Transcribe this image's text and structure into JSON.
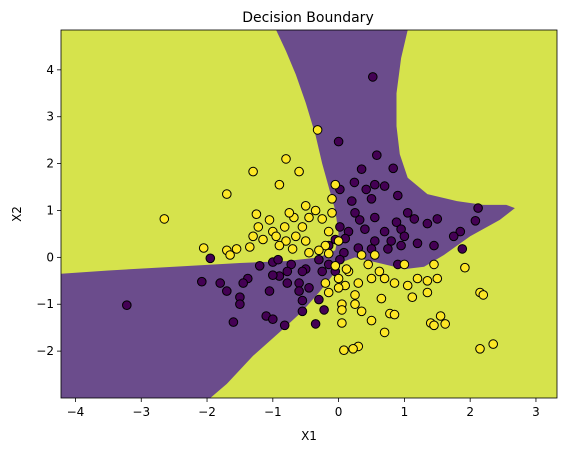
{
  "chart_data": {
    "type": "scatter",
    "title": "Decision Boundary",
    "xlabel": "X1",
    "ylabel": "X2",
    "xlim": [
      -4.22,
      3.32
    ],
    "ylim": [
      -3.0,
      4.85
    ],
    "xticks": [
      -4,
      -3,
      -2,
      -1,
      0,
      1,
      2,
      3
    ],
    "yticks": [
      -2,
      -1,
      0,
      1,
      2,
      3,
      4
    ],
    "grid": false,
    "legend": "none",
    "colors": {
      "class_0_region": "#6b4c8c",
      "class_1_region": "#d6e34c",
      "class_0_point": "#440154",
      "class_1_point": "#fde725",
      "point_edge": "#000000"
    },
    "region_class_0_polygon": [
      [
        -0.95,
        4.85
      ],
      [
        1.05,
        4.85
      ],
      [
        0.95,
        4.25
      ],
      [
        0.88,
        3.5
      ],
      [
        0.88,
        2.8
      ],
      [
        0.93,
        2.2
      ],
      [
        1.05,
        1.7
      ],
      [
        1.35,
        1.35
      ],
      [
        1.8,
        1.2
      ],
      [
        2.2,
        1.12
      ],
      [
        2.55,
        1.12
      ],
      [
        2.68,
        1.05
      ],
      [
        2.45,
        0.8
      ],
      [
        2.0,
        0.45
      ],
      [
        1.6,
        0.05
      ],
      [
        1.3,
        -0.2
      ],
      [
        1.0,
        -0.25
      ],
      [
        0.7,
        -0.15
      ],
      [
        0.4,
        -0.05
      ],
      [
        0.25,
        0.0
      ],
      [
        0.05,
        -0.1
      ],
      [
        -0.1,
        -0.4
      ],
      [
        -0.3,
        -0.75
      ],
      [
        -0.55,
        -1.15
      ],
      [
        -0.9,
        -1.6
      ],
      [
        -1.3,
        -2.1
      ],
      [
        -1.7,
        -2.7
      ],
      [
        -1.95,
        -3.0
      ],
      [
        -4.22,
        -3.0
      ],
      [
        -4.22,
        -0.35
      ],
      [
        -3.5,
        -0.28
      ],
      [
        -2.5,
        -0.2
      ],
      [
        -1.5,
        -0.12
      ],
      [
        -0.8,
        -0.08
      ],
      [
        -0.3,
        0.0
      ],
      [
        -0.05,
        0.15
      ],
      [
        0.0,
        0.5
      ],
      [
        -0.05,
        1.0
      ],
      [
        -0.15,
        1.5
      ],
      [
        -0.25,
        2.0
      ],
      [
        -0.35,
        2.6
      ],
      [
        -0.5,
        3.3
      ],
      [
        -0.65,
        3.9
      ],
      [
        -0.8,
        4.4
      ]
    ],
    "series": [
      {
        "class": 0,
        "points": [
          [
            0.52,
            3.85
          ],
          [
            0.0,
            2.47
          ],
          [
            0.58,
            2.18
          ],
          [
            0.35,
            1.88
          ],
          [
            0.83,
            1.9
          ],
          [
            0.24,
            1.6
          ],
          [
            0.55,
            1.55
          ],
          [
            0.7,
            1.52
          ],
          [
            0.42,
            1.45
          ],
          [
            0.9,
            1.32
          ],
          [
            0.02,
            1.45
          ],
          [
            0.2,
            1.2
          ],
          [
            0.5,
            1.25
          ],
          [
            1.05,
            0.95
          ],
          [
            0.32,
            0.8
          ],
          [
            0.55,
            0.85
          ],
          [
            0.88,
            0.75
          ],
          [
            1.15,
            0.82
          ],
          [
            1.5,
            0.82
          ],
          [
            0.25,
            0.95
          ],
          [
            1.35,
            0.72
          ],
          [
            1.85,
            0.55
          ],
          [
            1.75,
            0.45
          ],
          [
            2.12,
            1.05
          ],
          [
            2.08,
            0.78
          ],
          [
            0.02,
            0.65
          ],
          [
            0.15,
            0.55
          ],
          [
            0.4,
            0.6
          ],
          [
            0.7,
            0.55
          ],
          [
            0.95,
            0.6
          ],
          [
            1.0,
            0.45
          ],
          [
            0.8,
            0.35
          ],
          [
            0.55,
            0.35
          ],
          [
            0.1,
            0.4
          ],
          [
            -0.05,
            0.38
          ],
          [
            0.08,
            0.1
          ],
          [
            0.3,
            0.2
          ],
          [
            0.5,
            0.18
          ],
          [
            0.75,
            0.18
          ],
          [
            0.95,
            0.25
          ],
          [
            1.2,
            0.3
          ],
          [
            1.45,
            0.25
          ],
          [
            1.88,
            0.18
          ],
          [
            0.9,
            -0.15
          ],
          [
            0.02,
            -0.05
          ],
          [
            -0.15,
            0.25
          ],
          [
            -0.3,
            -0.05
          ],
          [
            -0.5,
            -0.25
          ],
          [
            -0.72,
            -0.15
          ],
          [
            -0.78,
            -0.3
          ],
          [
            -1.0,
            -0.1
          ],
          [
            -0.92,
            -0.05
          ],
          [
            -1.2,
            -0.18
          ],
          [
            -0.6,
            -0.55
          ],
          [
            -0.45,
            -0.65
          ],
          [
            -0.3,
            -0.9
          ],
          [
            -0.78,
            -0.55
          ],
          [
            -0.9,
            -0.4
          ],
          [
            -0.55,
            -0.3
          ],
          [
            -0.05,
            -0.3
          ],
          [
            -0.25,
            -0.3
          ],
          [
            -0.15,
            -0.15
          ],
          [
            -1.0,
            -0.38
          ],
          [
            -1.05,
            -0.72
          ],
          [
            -1.38,
            -0.45
          ],
          [
            -1.45,
            -0.55
          ],
          [
            -1.5,
            -0.85
          ],
          [
            -1.7,
            -0.72
          ],
          [
            -1.8,
            -0.55
          ],
          [
            -2.08,
            -0.52
          ],
          [
            -1.95,
            -0.02
          ],
          [
            -1.6,
            -1.38
          ],
          [
            -1.1,
            -1.25
          ],
          [
            -1.0,
            -1.32
          ],
          [
            -0.82,
            -1.45
          ],
          [
            -0.55,
            -1.15
          ],
          [
            -0.35,
            -1.42
          ],
          [
            -0.22,
            -1.12
          ],
          [
            -0.55,
            -0.92
          ],
          [
            -1.5,
            -1.0
          ],
          [
            -0.6,
            -0.72
          ],
          [
            -3.22,
            -1.02
          ]
        ]
      },
      {
        "class": 1,
        "points": [
          [
            -0.32,
            2.72
          ],
          [
            -0.8,
            2.1
          ],
          [
            -1.3,
            1.83
          ],
          [
            -0.6,
            1.83
          ],
          [
            -0.9,
            1.55
          ],
          [
            -1.7,
            1.35
          ],
          [
            -0.05,
            1.55
          ],
          [
            -0.1,
            1.25
          ],
          [
            -0.35,
            1.0
          ],
          [
            -0.45,
            0.85
          ],
          [
            -0.68,
            0.85
          ],
          [
            -0.82,
            0.65
          ],
          [
            -1.0,
            0.55
          ],
          [
            -1.22,
            0.65
          ],
          [
            -1.05,
            0.8
          ],
          [
            -1.25,
            0.92
          ],
          [
            -0.75,
            0.95
          ],
          [
            -0.5,
            1.1
          ],
          [
            -0.25,
            0.82
          ],
          [
            -0.1,
            0.95
          ],
          [
            -0.55,
            0.65
          ],
          [
            -0.15,
            0.55
          ],
          [
            0.0,
            0.35
          ],
          [
            -0.2,
            0.25
          ],
          [
            -0.5,
            0.35
          ],
          [
            -0.65,
            0.45
          ],
          [
            -0.8,
            0.35
          ],
          [
            -0.95,
            0.45
          ],
          [
            -1.15,
            0.38
          ],
          [
            -1.3,
            0.45
          ],
          [
            -1.55,
            0.18
          ],
          [
            -1.7,
            0.15
          ],
          [
            -1.35,
            0.22
          ],
          [
            -0.9,
            0.25
          ],
          [
            -0.7,
            0.18
          ],
          [
            -0.45,
            0.1
          ],
          [
            -0.3,
            0.15
          ],
          [
            -0.15,
            0.08
          ],
          [
            -2.65,
            0.82
          ],
          [
            -2.05,
            0.2
          ],
          [
            -1.65,
            0.05
          ],
          [
            0.15,
            -0.3
          ],
          [
            0.3,
            -0.55
          ],
          [
            0.5,
            -0.45
          ],
          [
            0.45,
            -0.15
          ],
          [
            0.62,
            -0.3
          ],
          [
            0.7,
            -0.45
          ],
          [
            0.85,
            -0.55
          ],
          [
            1.05,
            -0.6
          ],
          [
            1.0,
            -0.15
          ],
          [
            1.2,
            -0.45
          ],
          [
            1.35,
            -0.5
          ],
          [
            1.5,
            -0.45
          ],
          [
            1.45,
            -0.15
          ],
          [
            1.12,
            -0.85
          ],
          [
            1.35,
            -0.75
          ],
          [
            0.65,
            -0.88
          ],
          [
            0.78,
            -1.2
          ],
          [
            0.85,
            -1.22
          ],
          [
            0.25,
            -0.8
          ],
          [
            0.1,
            -0.6
          ],
          [
            0.05,
            -1.0
          ],
          [
            0.05,
            -1.12
          ],
          [
            -0.2,
            -0.55
          ],
          [
            -0.15,
            -0.75
          ],
          [
            0.0,
            -0.45
          ],
          [
            0.25,
            -1.0
          ],
          [
            0.35,
            -1.15
          ],
          [
            0.05,
            -1.4
          ],
          [
            0.5,
            -1.35
          ],
          [
            0.7,
            -1.6
          ],
          [
            0.3,
            -1.9
          ],
          [
            0.08,
            -1.98
          ],
          [
            0.22,
            -1.95
          ],
          [
            1.55,
            -1.25
          ],
          [
            1.62,
            -1.42
          ],
          [
            1.4,
            -1.4
          ],
          [
            1.45,
            -1.45
          ],
          [
            2.15,
            -0.75
          ],
          [
            2.2,
            -0.8
          ],
          [
            2.15,
            -1.95
          ],
          [
            2.35,
            -1.85
          ],
          [
            1.92,
            -0.22
          ],
          [
            0.55,
            0.05
          ],
          [
            0.35,
            0.05
          ],
          [
            0.12,
            -0.25
          ],
          [
            -0.05,
            -0.18
          ],
          [
            0.0,
            -0.65
          ]
        ]
      }
    ]
  }
}
